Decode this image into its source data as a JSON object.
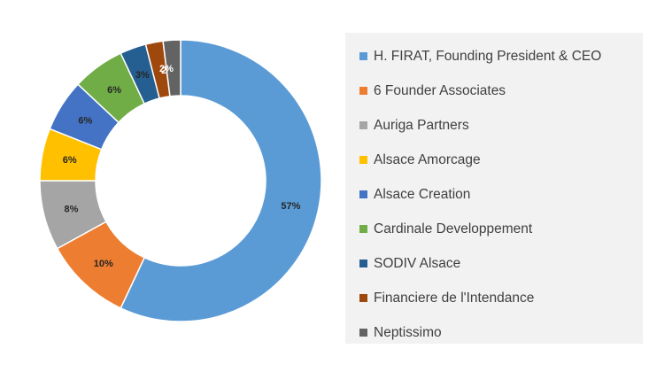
{
  "chart_data": {
    "type": "pie",
    "donut": true,
    "title": "",
    "legend_position": "right",
    "slices": [
      {
        "name": "H. FIRAT, Founding President & CEO",
        "value": 57,
        "label": "57%",
        "color": "#5b9bd5",
        "label_color": "#262626"
      },
      {
        "name": "6 Founder Associates",
        "value": 10,
        "label": "10%",
        "color": "#ed7d31",
        "label_color": "#262626"
      },
      {
        "name": "Auriga Partners",
        "value": 8,
        "label": "8%",
        "color": "#a5a5a5",
        "label_color": "#262626"
      },
      {
        "name": "Alsace Amorcage",
        "value": 6,
        "label": "6%",
        "color": "#ffc000",
        "label_color": "#262626"
      },
      {
        "name": "Alsace Creation",
        "value": 6,
        "label": "6%",
        "color": "#4472c4",
        "label_color": "#262626"
      },
      {
        "name": "Cardinale Developpement",
        "value": 6,
        "label": "6%",
        "color": "#70ad47",
        "label_color": "#262626"
      },
      {
        "name": "SODIV Alsace",
        "value": 3,
        "label": "3%",
        "color": "#255e91",
        "label_color": "#262626"
      },
      {
        "name": "Financiere de l'Intendance",
        "value": 2,
        "label": "2%",
        "color": "#9e480e",
        "label_color": "#ffffff"
      },
      {
        "name": "Neptissimo",
        "value": 2,
        "label": "2%",
        "color": "#636363",
        "label_color": "#ffffff"
      }
    ]
  }
}
